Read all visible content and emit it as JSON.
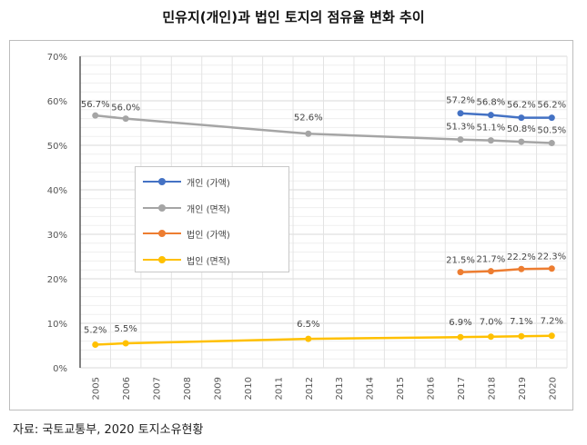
{
  "title": "민유지(개인)과 법인 토지의 점유율 변화 추이",
  "source": "자료: 국토교통부, 2020 토지소유현황",
  "chart_data": {
    "type": "line",
    "title": "민유지(개인)과 법인 토지의 점유율 변화 추이",
    "xlabel": "",
    "ylabel": "",
    "categories": [
      "2005",
      "2006",
      "2007",
      "2008",
      "2009",
      "2010",
      "2011",
      "2012",
      "2013",
      "2014",
      "2015",
      "2016",
      "2017",
      "2018",
      "2019",
      "2020"
    ],
    "yticks": [
      "0%",
      "10%",
      "20%",
      "30%",
      "40%",
      "50%",
      "60%",
      "70%"
    ],
    "ylim": [
      0,
      70
    ],
    "grid": true,
    "legend_position": "center-left",
    "series": [
      {
        "name": "개인 (가액)",
        "color": "#4472c4",
        "points": [
          [
            "2017",
            57.2
          ],
          [
            "2018",
            56.8
          ],
          [
            "2019",
            56.2
          ],
          [
            "2020",
            56.2
          ]
        ],
        "labels": [
          "57.2%",
          "56.8%",
          "56.2%",
          "56.2%"
        ],
        "label_pos": "above"
      },
      {
        "name": "개인 (면적)",
        "color": "#a5a5a5",
        "points": [
          [
            "2005",
            56.7
          ],
          [
            "2006",
            56.0
          ],
          [
            "2012",
            52.6
          ],
          [
            "2017",
            51.3
          ],
          [
            "2018",
            51.1
          ],
          [
            "2019",
            50.8
          ],
          [
            "2020",
            50.5
          ]
        ],
        "labels": [
          "56.7%",
          "56.0%",
          "52.6%",
          "51.3%",
          "51.1%",
          "50.8%",
          "50.5%"
        ],
        "label_pos": "mixed"
      },
      {
        "name": "법인 (가액)",
        "color": "#ed7d31",
        "points": [
          [
            "2017",
            21.5
          ],
          [
            "2018",
            21.7
          ],
          [
            "2019",
            22.2
          ],
          [
            "2020",
            22.3
          ]
        ],
        "labels": [
          "21.5%",
          "21.7%",
          "22.2%",
          "22.3%"
        ],
        "label_pos": "above"
      },
      {
        "name": "법인 (면적)",
        "color": "#ffc000",
        "points": [
          [
            "2005",
            5.2
          ],
          [
            "2006",
            5.5
          ],
          [
            "2012",
            6.5
          ],
          [
            "2017",
            6.9
          ],
          [
            "2018",
            7.0
          ],
          [
            "2019",
            7.1
          ],
          [
            "2020",
            7.2
          ]
        ],
        "labels": [
          "5.2%",
          "5.5%",
          "6.5%",
          "6.9%",
          "7.0%",
          "7.1%",
          "7.2%"
        ],
        "label_pos": "above"
      }
    ]
  }
}
